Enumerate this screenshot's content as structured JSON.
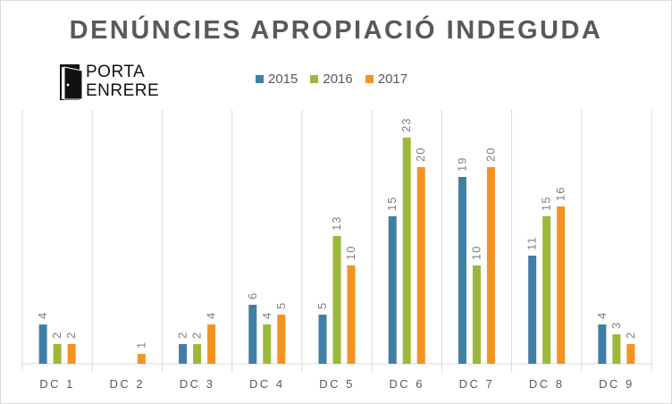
{
  "colors": {
    "series": [
      "#3f7fa6",
      "#9bb83a",
      "#f39322"
    ],
    "grid": "#d9d9d9",
    "title": "#595959"
  },
  "logo": {
    "line1": "PORTA",
    "line2": "ENRERE"
  },
  "chart_data": {
    "type": "bar",
    "title": "DENÚNCIES APROPIACIÓ INDEGUDA",
    "xlabel": "",
    "ylabel": "",
    "ylim": [
      0,
      25
    ],
    "grid": "vertical category separators",
    "legend_position": "top",
    "categories": [
      "DC 1",
      "DC 2",
      "DC 3",
      "DC 4",
      "DC 5",
      "DC 6",
      "DC 7",
      "DC 8",
      "DC 9"
    ],
    "series": [
      {
        "name": "2015",
        "values": [
          4,
          0,
          2,
          6,
          5,
          15,
          19,
          11,
          4
        ]
      },
      {
        "name": "2016",
        "values": [
          2,
          0,
          2,
          4,
          13,
          23,
          10,
          15,
          3
        ]
      },
      {
        "name": "2017",
        "values": [
          2,
          1,
          4,
          5,
          10,
          20,
          20,
          16,
          2
        ]
      }
    ]
  }
}
